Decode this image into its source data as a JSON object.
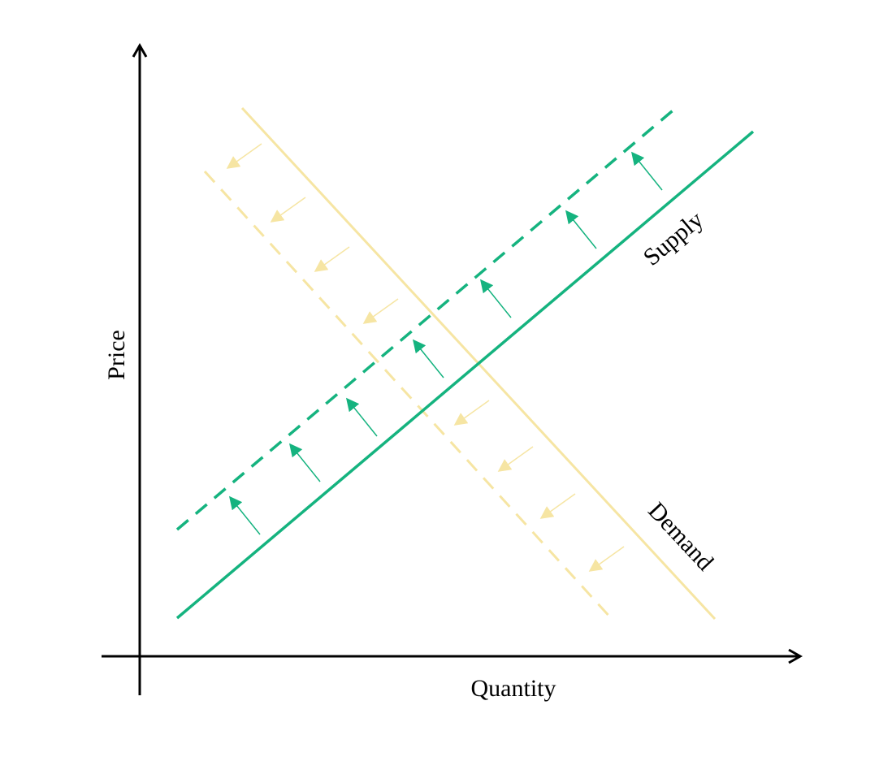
{
  "diagram": {
    "axis_x_label": "Quantity",
    "axis_y_label": "Price",
    "supply_label": "Supply",
    "demand_label": "Demand"
  },
  "colors": {
    "axis": "#000000",
    "supply": "#15b37f",
    "demand": "#f6e5a3"
  },
  "shifts": {
    "supply": "up-left",
    "demand": "down-left"
  }
}
